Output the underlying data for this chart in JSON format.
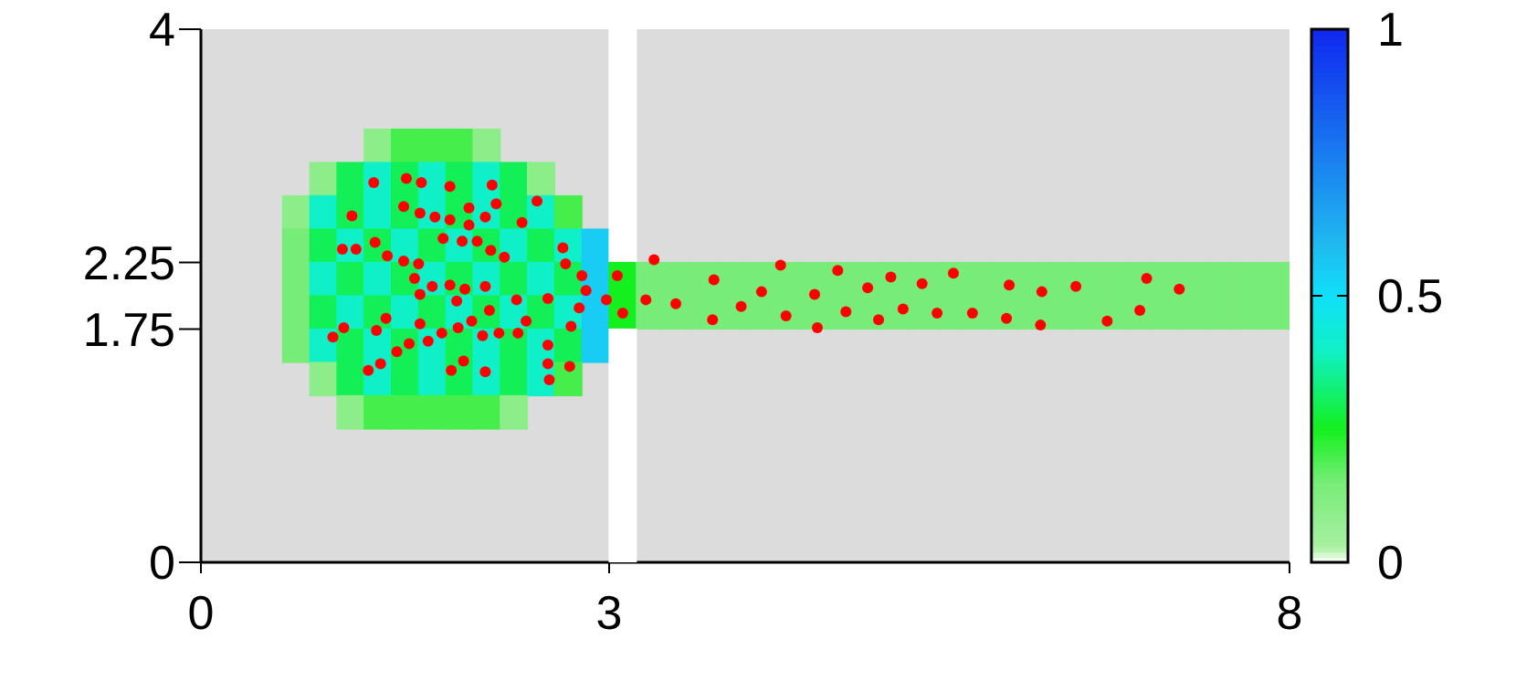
{
  "chart_data": {
    "type": "heatmap",
    "xlim": [
      0,
      8
    ],
    "ylim": [
      0,
      4
    ],
    "xticks": [
      0,
      3,
      8
    ],
    "yticks": [
      0,
      1.75,
      2.25,
      4
    ],
    "clim": [
      0,
      1
    ],
    "cticks": [
      0,
      0.5,
      1
    ],
    "grid": false,
    "marker": "circle",
    "cells": [
      [
        null,
        null,
        null,
        null,
        null,
        null,
        null,
        null,
        null,
        null,
        null,
        null,
        null,
        null,
        null,
        0,
        null,
        null,
        null,
        null,
        null,
        null,
        null,
        null,
        null,
        null,
        null,
        null,
        null,
        null,
        null,
        null,
        null,
        null,
        null,
        null,
        null,
        null,
        null,
        null
      ],
      [
        null,
        null,
        null,
        null,
        null,
        null,
        null,
        null,
        null,
        null,
        null,
        null,
        null,
        null,
        null,
        0,
        null,
        null,
        null,
        null,
        null,
        null,
        null,
        null,
        null,
        null,
        null,
        null,
        null,
        null,
        null,
        null,
        null,
        null,
        null,
        null,
        null,
        null,
        null,
        null
      ],
      [
        null,
        null,
        null,
        null,
        null,
        null,
        null,
        null,
        null,
        null,
        null,
        null,
        null,
        null,
        null,
        0,
        null,
        null,
        null,
        null,
        null,
        null,
        null,
        null,
        null,
        null,
        null,
        null,
        null,
        null,
        null,
        null,
        null,
        null,
        null,
        null,
        null,
        null,
        null,
        null
      ],
      [
        null,
        null,
        null,
        null,
        null,
        null,
        0.1,
        0.2,
        0.2,
        0.2,
        0.1,
        null,
        null,
        null,
        null,
        0,
        null,
        null,
        null,
        null,
        null,
        null,
        null,
        null,
        null,
        null,
        null,
        null,
        null,
        null,
        null,
        null,
        null,
        null,
        null,
        null,
        null,
        null,
        null,
        null
      ],
      [
        null,
        null,
        null,
        null,
        0.1,
        0.3,
        0.4,
        0.3,
        0.4,
        0.3,
        0.4,
        0.3,
        0.1,
        null,
        null,
        0,
        null,
        null,
        null,
        null,
        null,
        null,
        null,
        null,
        null,
        null,
        null,
        null,
        null,
        null,
        null,
        null,
        null,
        null,
        null,
        null,
        null,
        null,
        null,
        null
      ],
      [
        null,
        null,
        null,
        0.1,
        0.4,
        0.3,
        0.4,
        0.3,
        0.4,
        0.3,
        0.4,
        0.3,
        0.4,
        0.2,
        null,
        0,
        null,
        null,
        null,
        null,
        null,
        null,
        null,
        null,
        null,
        null,
        null,
        null,
        null,
        null,
        null,
        null,
        null,
        null,
        null,
        null,
        null,
        null,
        null,
        null
      ],
      [
        null,
        null,
        null,
        0.15,
        0.3,
        0.4,
        0.3,
        0.4,
        0.3,
        0.4,
        0.3,
        0.4,
        0.3,
        0.4,
        0.55,
        0,
        null,
        null,
        null,
        null,
        null,
        null,
        null,
        null,
        null,
        null,
        null,
        null,
        null,
        null,
        null,
        null,
        null,
        null,
        null,
        null,
        null,
        null,
        null,
        null
      ],
      [
        null,
        null,
        null,
        0.15,
        0.4,
        0.3,
        0.4,
        0.3,
        0.4,
        0.3,
        0.4,
        0.3,
        0.4,
        0.3,
        0.55,
        0.25,
        0.15,
        0.15,
        0.15,
        0.15,
        0.15,
        0.15,
        0.15,
        0.15,
        0.15,
        0.15,
        0.15,
        0.15,
        0.15,
        0.15,
        0.15,
        0.15,
        0.15,
        0.15,
        0.15,
        0.15,
        0.15,
        0.15,
        0.15,
        0.15
      ],
      [
        null,
        null,
        null,
        0.15,
        0.3,
        0.4,
        0.3,
        0.4,
        0.3,
        0.4,
        0.3,
        0.4,
        0.3,
        0.4,
        0.55,
        0.25,
        0.15,
        0.15,
        0.15,
        0.15,
        0.15,
        0.15,
        0.15,
        0.15,
        0.15,
        0.15,
        0.15,
        0.15,
        0.15,
        0.15,
        0.15,
        0.15,
        0.15,
        0.15,
        0.15,
        0.15,
        0.15,
        0.15,
        0.15,
        0.15
      ],
      [
        null,
        null,
        null,
        0.15,
        0.4,
        0.3,
        0.4,
        0.3,
        0.4,
        0.3,
        0.4,
        0.3,
        0.4,
        0.3,
        0.55,
        0,
        null,
        null,
        null,
        null,
        null,
        null,
        null,
        null,
        null,
        null,
        null,
        null,
        null,
        null,
        null,
        null,
        null,
        null,
        null,
        null,
        null,
        null,
        null,
        null
      ],
      [
        null,
        null,
        null,
        null,
        0.1,
        0.3,
        0.4,
        0.3,
        0.4,
        0.3,
        0.4,
        0.3,
        0.4,
        0.2,
        null,
        0,
        null,
        null,
        null,
        null,
        null,
        null,
        null,
        null,
        null,
        null,
        null,
        null,
        null,
        null,
        null,
        null,
        null,
        null,
        null,
        null,
        null,
        null,
        null,
        null
      ],
      [
        null,
        null,
        null,
        null,
        null,
        0.1,
        0.2,
        0.2,
        0.2,
        0.2,
        0.2,
        0.1,
        null,
        null,
        null,
        0,
        null,
        null,
        null,
        null,
        null,
        null,
        null,
        null,
        null,
        null,
        null,
        null,
        null,
        null,
        null,
        null,
        null,
        null,
        null,
        null,
        null,
        null,
        null,
        null
      ],
      [
        null,
        null,
        null,
        null,
        null,
        null,
        null,
        null,
        null,
        null,
        null,
        null,
        null,
        null,
        null,
        0,
        null,
        null,
        null,
        null,
        null,
        null,
        null,
        null,
        null,
        null,
        null,
        null,
        null,
        null,
        null,
        null,
        null,
        null,
        null,
        null,
        null,
        null,
        null,
        null
      ],
      [
        null,
        null,
        null,
        null,
        null,
        null,
        null,
        null,
        null,
        null,
        null,
        null,
        null,
        null,
        null,
        0,
        null,
        null,
        null,
        null,
        null,
        null,
        null,
        null,
        null,
        null,
        null,
        null,
        null,
        null,
        null,
        null,
        null,
        null,
        null,
        null,
        null,
        null,
        null,
        null
      ],
      [
        null,
        null,
        null,
        null,
        null,
        null,
        null,
        null,
        null,
        null,
        null,
        null,
        null,
        null,
        null,
        0,
        null,
        null,
        null,
        null,
        null,
        null,
        null,
        null,
        null,
        null,
        null,
        null,
        null,
        null,
        null,
        null,
        null,
        null,
        null,
        null,
        null,
        null,
        null,
        null
      ],
      [
        null,
        null,
        null,
        null,
        null,
        null,
        null,
        null,
        null,
        null,
        null,
        null,
        null,
        null,
        null,
        0,
        null,
        null,
        null,
        null,
        null,
        null,
        null,
        null,
        null,
        null,
        null,
        null,
        null,
        null,
        null,
        null,
        null,
        null,
        null,
        null,
        null,
        null,
        null,
        null
      ]
    ],
    "series": [
      {
        "type": "scatter",
        "color": "#ff0000",
        "x": [
          1.27,
          1.51,
          1.62,
          1.83,
          2.14,
          2.17,
          2.47,
          1.11,
          1.49,
          1.61,
          1.72,
          1.83,
          1.97,
          1.97,
          2.09,
          2.36,
          1.04,
          1.14,
          1.28,
          1.37,
          1.49,
          1.6,
          1.78,
          1.92,
          2.03,
          2.13,
          2.23,
          2.66,
          2.68,
          2.8,
          1.57,
          1.61,
          1.7,
          1.83,
          1.94,
          2.09,
          1.88,
          2.32,
          2.55,
          2.83,
          2.98,
          3.06,
          2.78,
          2.12,
          1.36,
          1.05,
          0.97,
          1.29,
          1.61,
          1.89,
          1.99,
          2.39,
          2.72,
          1.77,
          1.67,
          1.53,
          1.44,
          1.32,
          1.23,
          2.07,
          2.19,
          2.33,
          2.55,
          2.55,
          2.71,
          2.56,
          1.93,
          1.84,
          2.09,
          3.1,
          3.33,
          3.27,
          3.49,
          3.77,
          3.76,
          3.97,
          4.12,
          4.26,
          4.3,
          4.51,
          4.53,
          4.68,
          4.74,
          4.9,
          4.98,
          5.07,
          5.16,
          5.3,
          5.41,
          5.53,
          5.67,
          5.94,
          6.18,
          5.92,
          6.17,
          6.43,
          6.66,
          6.95,
          6.9,
          7.19
        ],
        "values": [
          2.85,
          2.88,
          2.85,
          2.82,
          2.83,
          2.69,
          2.71,
          2.6,
          2.67,
          2.62,
          2.59,
          2.57,
          2.66,
          2.53,
          2.59,
          2.55,
          2.35,
          2.35,
          2.4,
          2.3,
          2.26,
          2.24,
          2.43,
          2.41,
          2.41,
          2.34,
          2.29,
          2.36,
          2.24,
          2.15,
          2.13,
          2.01,
          2.07,
          2.08,
          2.05,
          2.07,
          1.96,
          1.97,
          1.98,
          2.04,
          1.97,
          2.15,
          1.91,
          1.89,
          1.83,
          1.76,
          1.69,
          1.74,
          1.79,
          1.76,
          1.81,
          1.81,
          1.77,
          1.72,
          1.66,
          1.64,
          1.58,
          1.49,
          1.44,
          1.7,
          1.72,
          1.72,
          1.63,
          1.49,
          1.47,
          1.37,
          1.51,
          1.44,
          1.43,
          1.87,
          2.27,
          1.97,
          1.94,
          2.12,
          1.82,
          1.92,
          2.03,
          2.23,
          1.85,
          2.01,
          1.76,
          2.19,
          1.88,
          2.06,
          1.82,
          2.14,
          1.9,
          2.09,
          1.87,
          2.17,
          1.87,
          2.08,
          2.03,
          1.83,
          1.78,
          2.07,
          1.81,
          2.13,
          1.89,
          2.05
        ]
      }
    ]
  }
}
